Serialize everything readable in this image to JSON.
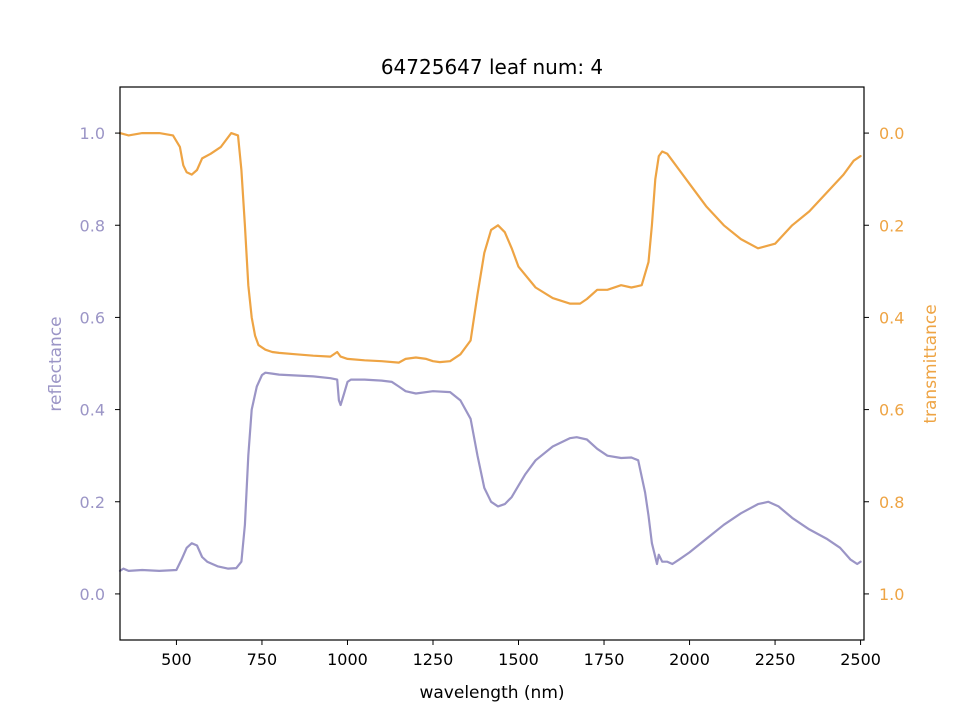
{
  "chart_data": {
    "type": "line",
    "title": "64725647 leaf num: 4",
    "xlabel": "wavelength (nm)",
    "xlim": [
      335,
      2510
    ],
    "xticks": [
      500,
      750,
      1000,
      1250,
      1500,
      1750,
      2000,
      2250,
      2500
    ],
    "left_axis": {
      "label": "reflectance",
      "ylim": [
        -0.1,
        1.1
      ],
      "ticks": [
        0.0,
        0.2,
        0.4,
        0.6,
        0.8,
        1.0
      ],
      "color": "#9b95c6"
    },
    "right_axis": {
      "label": "transmittance",
      "ylim": [
        1.1,
        -0.1
      ],
      "inverted": true,
      "ticks": [
        0.0,
        0.2,
        0.4,
        0.6,
        0.8,
        1.0
      ],
      "color": "#eea444"
    },
    "grid": false,
    "series": [
      {
        "axis": "left",
        "color": "#9b95c6",
        "x": [
          335,
          345,
          360,
          400,
          450,
          500,
          515,
          530,
          545,
          560,
          575,
          590,
          620,
          650,
          675,
          690,
          700,
          710,
          720,
          735,
          750,
          760,
          780,
          800,
          850,
          900,
          950,
          970,
          975,
          980,
          990,
          1000,
          1010,
          1050,
          1100,
          1130,
          1150,
          1170,
          1200,
          1250,
          1300,
          1330,
          1360,
          1380,
          1400,
          1420,
          1440,
          1460,
          1480,
          1500,
          1520,
          1550,
          1600,
          1650,
          1670,
          1700,
          1730,
          1760,
          1800,
          1830,
          1850,
          1870,
          1880,
          1890,
          1900,
          1905,
          1910,
          1920,
          1935,
          1950,
          1970,
          2000,
          2050,
          2100,
          2150,
          2200,
          2230,
          2260,
          2300,
          2350,
          2400,
          2440,
          2470,
          2490,
          2500
        ],
        "y": [
          0.05,
          0.055,
          0.05,
          0.052,
          0.05,
          0.052,
          0.075,
          0.1,
          0.11,
          0.105,
          0.08,
          0.07,
          0.06,
          0.055,
          0.056,
          0.07,
          0.15,
          0.3,
          0.4,
          0.45,
          0.475,
          0.48,
          0.478,
          0.476,
          0.474,
          0.472,
          0.468,
          0.465,
          0.42,
          0.41,
          0.435,
          0.46,
          0.465,
          0.465,
          0.463,
          0.46,
          0.45,
          0.44,
          0.435,
          0.44,
          0.438,
          0.42,
          0.38,
          0.3,
          0.23,
          0.2,
          0.19,
          0.195,
          0.21,
          0.235,
          0.26,
          0.29,
          0.32,
          0.338,
          0.34,
          0.335,
          0.315,
          0.3,
          0.295,
          0.296,
          0.29,
          0.22,
          0.17,
          0.11,
          0.08,
          0.065,
          0.085,
          0.07,
          0.07,
          0.065,
          0.075,
          0.09,
          0.12,
          0.15,
          0.175,
          0.195,
          0.2,
          0.19,
          0.165,
          0.14,
          0.12,
          0.1,
          0.075,
          0.065,
          0.07
        ]
      },
      {
        "axis": "right",
        "color": "#eea444",
        "x": [
          335,
          360,
          400,
          450,
          490,
          510,
          520,
          530,
          545,
          560,
          575,
          600,
          630,
          660,
          680,
          690,
          700,
          710,
          720,
          730,
          740,
          750,
          760,
          780,
          800,
          850,
          900,
          950,
          970,
          980,
          1000,
          1050,
          1100,
          1150,
          1170,
          1200,
          1230,
          1250,
          1270,
          1300,
          1330,
          1360,
          1380,
          1400,
          1420,
          1440,
          1460,
          1480,
          1500,
          1550,
          1600,
          1650,
          1680,
          1700,
          1730,
          1760,
          1800,
          1830,
          1860,
          1880,
          1890,
          1900,
          1910,
          1920,
          1935,
          1950,
          1970,
          2000,
          2050,
          2100,
          2150,
          2200,
          2250,
          2300,
          2350,
          2400,
          2450,
          2480,
          2500
        ],
        "y": [
          0.0,
          0.005,
          0.0,
          0.0,
          0.005,
          0.03,
          0.07,
          0.085,
          0.09,
          0.08,
          0.055,
          0.045,
          0.03,
          0.0,
          0.005,
          0.08,
          0.2,
          0.33,
          0.4,
          0.44,
          0.46,
          0.465,
          0.47,
          0.475,
          0.477,
          0.48,
          0.483,
          0.485,
          0.475,
          0.485,
          0.49,
          0.493,
          0.495,
          0.498,
          0.49,
          0.487,
          0.49,
          0.495,
          0.497,
          0.495,
          0.48,
          0.45,
          0.35,
          0.26,
          0.21,
          0.2,
          0.215,
          0.25,
          0.29,
          0.335,
          0.358,
          0.37,
          0.37,
          0.36,
          0.34,
          0.34,
          0.33,
          0.335,
          0.33,
          0.28,
          0.2,
          0.1,
          0.05,
          0.04,
          0.045,
          0.06,
          0.08,
          0.11,
          0.16,
          0.2,
          0.23,
          0.25,
          0.24,
          0.2,
          0.17,
          0.13,
          0.09,
          0.06,
          0.05
        ]
      }
    ]
  }
}
